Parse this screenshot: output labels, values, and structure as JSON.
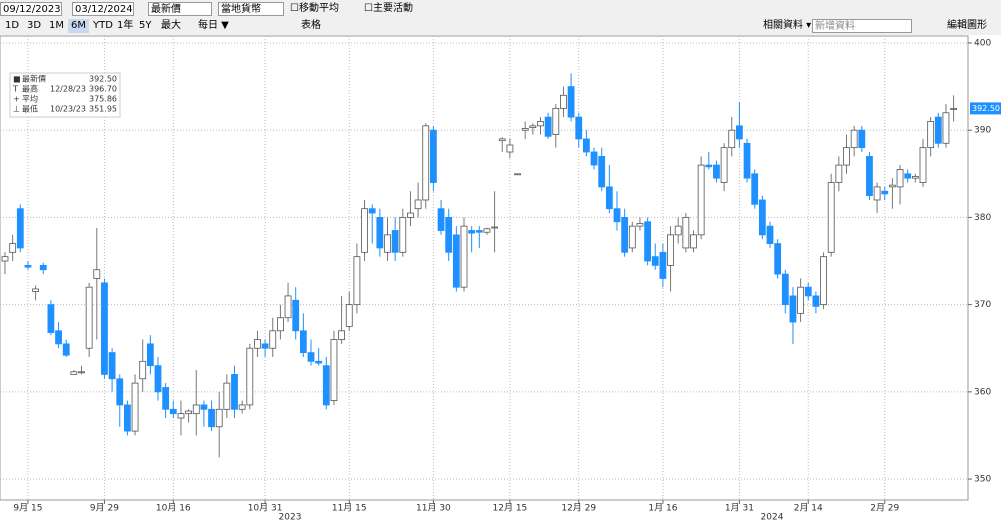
{
  "toolbar": {
    "start_date": "09/12/2023",
    "end_date": "03/12/2024",
    "price_field": "最新價",
    "currency": "當地貨幣",
    "moving_average": "移動平均",
    "key_events": "主要活動",
    "ranges": [
      "1D",
      "3D",
      "1M",
      "6M",
      "YTD",
      "1年",
      "5Y",
      "最大"
    ],
    "active_range": "6M",
    "period": "每日 ▼",
    "table": "表格",
    "related": "相關資料 ▾",
    "add_data": "新增資料",
    "edit_chart": "編輯圖形"
  },
  "chart_data": {
    "type": "candlestick",
    "categories": [
      null,
      null,
      null,
      "9月 15",
      null,
      null,
      null,
      null,
      null,
      null,
      null,
      null,
      null,
      "9月 29",
      null,
      null,
      null,
      null,
      null,
      null,
      null,
      null,
      "10月 16",
      null,
      null,
      null,
      null,
      null,
      null,
      null,
      null,
      null,
      null,
      null,
      "10月 31",
      null,
      null,
      null,
      null,
      null,
      null,
      null,
      null,
      null,
      null,
      "11月 15",
      null,
      null,
      null,
      null,
      null,
      null,
      null,
      null,
      null,
      null,
      "11月 30",
      null,
      null,
      null,
      null,
      null,
      null,
      null,
      null,
      null,
      "12月 15",
      null,
      null,
      null,
      null,
      null,
      null,
      null,
      null,
      "12月 29",
      null,
      null,
      null,
      null,
      null,
      null,
      null,
      null,
      null,
      null,
      "1月 16",
      null,
      null,
      null,
      null,
      null,
      null,
      null,
      null,
      null,
      "1月 31",
      null,
      null,
      null,
      null,
      null,
      null,
      null,
      null,
      "2月 14",
      null,
      null,
      null,
      null,
      null,
      null,
      null,
      null,
      null,
      "2月 29",
      null,
      null,
      null,
      null,
      null,
      null,
      null,
      null,
      null
    ],
    "x_year_labels": [
      "2023",
      "2024"
    ],
    "ohlc": [
      [
        375,
        376,
        373.5,
        375.5
      ],
      [
        376,
        378,
        375,
        377
      ],
      [
        381,
        381.5,
        376,
        376.5
      ],
      [
        374.5,
        375,
        374,
        374.3
      ],
      [
        371.5,
        372.2,
        370.5,
        371.8
      ],
      [
        374.5,
        374.8,
        373.5,
        374
      ],
      [
        370,
        370.5,
        366.5,
        366.8
      ],
      [
        367,
        368,
        365,
        365.5
      ],
      [
        365.5,
        366,
        364,
        364.2
      ],
      [
        362,
        362.5,
        362,
        362.3
      ],
      [
        362.3,
        363,
        362,
        362.3
      ],
      [
        365,
        372.5,
        364,
        372
      ],
      [
        373,
        378.8,
        366,
        374
      ],
      [
        372.5,
        373,
        361.5,
        362
      ],
      [
        364.5,
        365,
        360,
        361.5
      ],
      [
        361.5,
        362,
        356,
        358.5
      ],
      [
        358.5,
        359,
        355,
        355.5
      ],
      [
        355.5,
        362,
        355,
        361
      ],
      [
        361.5,
        366,
        360,
        363.5
      ],
      [
        365.5,
        366.5,
        362,
        363
      ],
      [
        363,
        364,
        359,
        360
      ],
      [
        360.5,
        361,
        357,
        358
      ],
      [
        358,
        359,
        357,
        357.5
      ],
      [
        357,
        359,
        355,
        357.5
      ],
      [
        357.5,
        358,
        356.5,
        357.8
      ],
      [
        357.5,
        362.5,
        355,
        358.5
      ],
      [
        358.5,
        359,
        356,
        358
      ],
      [
        358,
        359,
        355.5,
        356
      ],
      [
        356,
        360,
        352.5,
        358
      ],
      [
        358,
        362,
        357,
        361
      ],
      [
        362,
        363,
        357,
        358
      ],
      [
        358,
        359,
        357.5,
        358.5
      ],
      [
        358.5,
        365.5,
        358,
        365
      ],
      [
        365,
        367,
        364,
        366
      ],
      [
        365.5,
        366,
        364,
        365
      ],
      [
        365,
        368.5,
        364,
        367
      ],
      [
        367,
        370,
        366,
        368.5
      ],
      [
        368.5,
        372.5,
        368,
        371
      ],
      [
        370.5,
        372,
        366,
        367
      ],
      [
        367,
        369,
        364,
        364.5
      ],
      [
        364.5,
        366,
        363,
        363.5
      ],
      [
        363.5,
        365,
        363,
        363.3
      ],
      [
        363,
        364,
        358,
        358.5
      ],
      [
        359,
        367,
        358.5,
        366
      ],
      [
        366,
        371,
        365.5,
        367
      ],
      [
        367.5,
        371.5,
        367,
        370
      ],
      [
        370,
        377,
        369,
        375.5
      ],
      [
        376,
        382,
        375,
        381
      ],
      [
        381,
        381.5,
        377,
        380.5
      ],
      [
        380,
        381,
        375.5,
        376.5
      ],
      [
        376,
        380,
        375,
        378
      ],
      [
        378.5,
        380,
        375,
        376
      ],
      [
        376,
        381,
        375.5,
        380
      ],
      [
        380,
        383,
        379,
        380.5
      ],
      [
        381,
        384,
        380,
        382
      ],
      [
        382,
        390.8,
        381,
        390.5
      ],
      [
        390,
        390.5,
        383,
        384
      ],
      [
        381,
        382,
        378,
        378.5
      ],
      [
        380,
        381,
        375,
        376
      ],
      [
        378,
        379,
        371.5,
        372
      ],
      [
        372,
        380,
        371.5,
        379
      ],
      [
        378.5,
        379,
        376,
        378.2
      ],
      [
        378.5,
        379,
        376.5,
        378.3
      ],
      [
        378.3,
        378.8,
        378,
        378.7
      ],
      [
        378.8,
        383,
        376,
        378.9
      ],
      [
        388.8,
        389.2,
        387.5,
        389
      ],
      [
        387.5,
        389,
        386.8,
        388.3
      ],
      [
        385,
        385,
        385,
        385
      ],
      [
        390,
        391,
        389,
        390.2
      ],
      [
        390.3,
        390.8,
        389.5,
        390.5
      ],
      [
        390.5,
        391.5,
        389.5,
        391
      ],
      [
        391.5,
        392,
        389,
        389.3
      ],
      [
        389.5,
        393,
        388,
        392.5
      ],
      [
        392.5,
        395,
        391.5,
        394
      ],
      [
        395,
        396.5,
        391,
        391.5
      ],
      [
        391.5,
        392,
        388,
        389
      ],
      [
        389,
        390,
        387,
        387.5
      ],
      [
        387.5,
        388,
        385.5,
        386
      ],
      [
        387,
        388,
        383,
        383.5
      ],
      [
        383.5,
        386,
        380.5,
        381
      ],
      [
        381,
        383,
        378.5,
        379.5
      ],
      [
        380,
        381,
        375.5,
        376
      ],
      [
        376.5,
        379.5,
        376,
        379
      ],
      [
        379,
        380,
        378.5,
        379.3
      ],
      [
        379.5,
        380,
        374.5,
        375
      ],
      [
        375.5,
        377,
        374,
        374.5
      ],
      [
        376,
        377,
        372,
        373
      ],
      [
        374.5,
        379,
        371.5,
        378
      ],
      [
        378,
        380,
        377,
        379
      ],
      [
        376.5,
        380.5,
        376,
        380
      ],
      [
        376.5,
        378.5,
        376,
        378
      ],
      [
        378,
        387,
        377.5,
        386
      ],
      [
        386,
        387.5,
        385.5,
        385.8
      ],
      [
        386,
        386.5,
        384,
        384.5
      ],
      [
        384,
        388.5,
        383,
        388
      ],
      [
        388,
        391.5,
        387,
        390
      ],
      [
        390.5,
        393.2,
        388,
        389
      ],
      [
        388.5,
        389,
        384,
        384.5
      ],
      [
        385,
        385.5,
        381,
        381.5
      ],
      [
        382,
        382.5,
        377.5,
        378
      ],
      [
        379,
        379.5,
        376.5,
        377
      ],
      [
        377,
        377.5,
        373,
        373.5
      ],
      [
        373.5,
        374,
        369,
        370
      ],
      [
        371,
        372,
        365.5,
        368
      ],
      [
        369,
        373,
        368,
        372
      ],
      [
        372,
        372.5,
        370.5,
        371
      ],
      [
        371,
        371.5,
        369,
        369.8
      ],
      [
        370,
        376,
        369.5,
        375.5
      ],
      [
        376,
        385,
        375.5,
        384
      ],
      [
        384,
        387,
        383,
        386
      ],
      [
        386,
        389.5,
        385,
        388
      ],
      [
        388,
        390.5,
        387,
        390
      ],
      [
        390,
        390.5,
        387.5,
        388
      ],
      [
        387,
        387.5,
        382,
        382.5
      ],
      [
        382,
        384,
        380.5,
        383.5
      ],
      [
        383,
        383.5,
        382,
        382.7
      ],
      [
        383.5,
        384.5,
        381,
        383.7
      ],
      [
        383.5,
        386,
        381.5,
        385.5
      ],
      [
        385,
        385.5,
        384,
        384.5
      ],
      [
        384.5,
        385,
        384,
        384.7
      ],
      [
        384,
        389,
        383.5,
        388
      ],
      [
        388,
        391.5,
        387,
        391
      ],
      [
        391.5,
        392,
        388,
        388.5
      ],
      [
        388.5,
        393,
        388,
        392
      ],
      [
        392.5,
        394,
        391,
        392.5
      ]
    ],
    "up_color": "#ffffff",
    "down_color": "#1e90ff",
    "ylim": [
      347.6,
      400.8
    ],
    "yticks": [
      350,
      360,
      370,
      380,
      390,
      400
    ],
    "grid": true,
    "last_price": {
      "value": 392.5,
      "label": "392.50"
    },
    "legend": [
      {
        "label": "最新價",
        "date": "",
        "value": "392.50"
      },
      {
        "label": "最高",
        "date": "12/28/23",
        "value": "396.70"
      },
      {
        "label": "平均",
        "date": "",
        "value": "375.86"
      },
      {
        "label": "最低",
        "date": "10/23/23",
        "value": "351.95"
      }
    ]
  }
}
